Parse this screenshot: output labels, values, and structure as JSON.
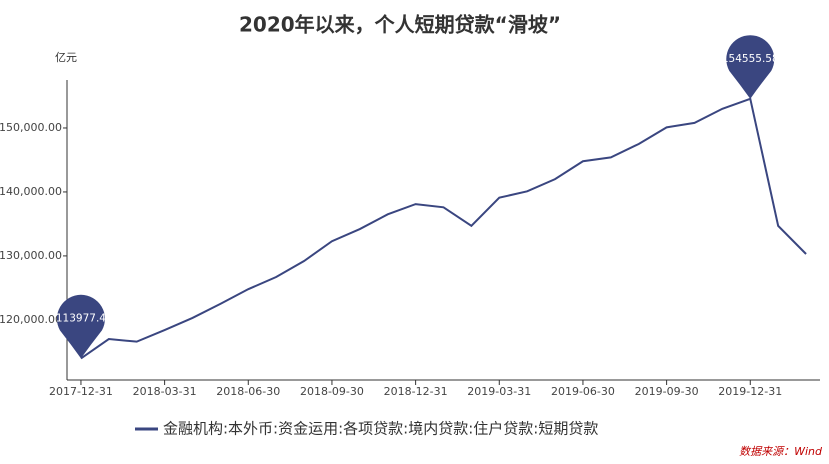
{
  "chart_data": {
    "type": "line",
    "title": "2020年以来，个人短期贷款“滑坡”",
    "y_label": "亿元",
    "source": "数据来源：Wind",
    "categories": [
      "2017-12-31",
      null,
      null,
      "2018-03-31",
      null,
      null,
      "2018-06-30",
      null,
      null,
      "2018-09-30",
      null,
      null,
      "2018-12-31",
      null,
      null,
      "2019-03-31",
      null,
      null,
      "2019-06-30",
      null,
      null,
      "2019-09-30",
      null,
      null,
      "2019-12-31",
      null,
      null
    ],
    "series": [
      {
        "name": "金融机构:本外币:资金运用:各项贷款:境内贷款:住户贷款:短期贷款",
        "color": "#3a4680",
        "values": [
          113977.4,
          117000,
          116600,
          118400,
          120300,
          122500,
          124800,
          126700,
          129200,
          132300,
          134200,
          136500,
          138100,
          137600,
          134700,
          139100,
          140100,
          142000,
          144800,
          145400,
          147500,
          150100,
          150800,
          153000,
          154555.58,
          134700,
          130300
        ],
        "mark_point": [
          "min",
          "max"
        ]
      }
    ],
    "ylim": [
      110600,
      157500
    ],
    "yticks": [
      {
        "value": 120000,
        "label": "120,000.00"
      },
      {
        "value": 130000,
        "label": "130,000.00"
      },
      {
        "value": 140000,
        "label": "140,000.00"
      },
      {
        "value": 150000,
        "label": "150,000.00"
      }
    ],
    "grid": false
  }
}
